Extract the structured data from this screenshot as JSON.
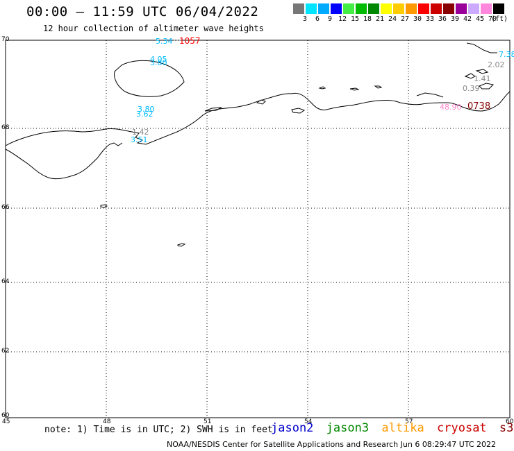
{
  "header": {
    "title": "00:00 – 11:59 UTC 06/04/2022",
    "subtitle": "12 hour collection of altimeter wave heights"
  },
  "scale": {
    "unit": "(ft)",
    "bins": [
      {
        "color": "#777777",
        "label": "3"
      },
      {
        "color": "#00e5ff",
        "label": "6"
      },
      {
        "color": "#00aaff",
        "label": "9"
      },
      {
        "color": "#0000ff",
        "label": "12"
      },
      {
        "color": "#44ee44",
        "label": "15"
      },
      {
        "color": "#00bb00",
        "label": "18"
      },
      {
        "color": "#008800",
        "label": "21"
      },
      {
        "color": "#ffff00",
        "label": "24"
      },
      {
        "color": "#ffcc00",
        "label": "27"
      },
      {
        "color": "#ff9900",
        "label": "30"
      },
      {
        "color": "#ff0000",
        "label": "33"
      },
      {
        "color": "#cc0000",
        "label": "36"
      },
      {
        "color": "#880000",
        "label": "39"
      },
      {
        "color": "#990099",
        "label": "42"
      },
      {
        "color": "#ccaaff",
        "label": "45"
      },
      {
        "color": "#ff88dd",
        "label": "70"
      },
      {
        "color": "#000000",
        "label": ""
      }
    ]
  },
  "axes": {
    "lat_labels": [
      "70",
      "68",
      "66",
      "64",
      "62",
      "60"
    ],
    "lon_labels": [
      "45",
      "48",
      "51",
      "54",
      "57",
      "60"
    ]
  },
  "observations": [
    {
      "text": "5.34",
      "color": "#00bbff"
    },
    {
      "text": "1057",
      "color": "#ff0000"
    },
    {
      "text": "4.05",
      "color": "#00bbff"
    },
    {
      "text": "3.80",
      "color": "#00bbff"
    },
    {
      "text": "3.80",
      "color": "#00bbff"
    },
    {
      "text": "3.62",
      "color": "#00bbff"
    },
    {
      "text": "1.42",
      "color": "#888888"
    },
    {
      "text": "3.51",
      "color": "#00bbff"
    },
    {
      "text": "7.38",
      "color": "#00bbff"
    },
    {
      "text": "2.02",
      "color": "#888888"
    },
    {
      "text": "1.41",
      "color": "#888888"
    },
    {
      "text": "0.39",
      "color": "#888888"
    },
    {
      "text": "48.90",
      "color": "#ff88cc"
    },
    {
      "text": "0738",
      "color": "#880000"
    }
  ],
  "note": "note: 1) Time is in UTC; 2) SWH is in feet",
  "legend": [
    {
      "name": "jason2",
      "color": "#0000cc"
    },
    {
      "name": "jason3",
      "color": "#008800"
    },
    {
      "name": "altika",
      "color": "#ff9900"
    },
    {
      "name": "cryosat",
      "color": "#cc0000"
    },
    {
      "name": "s3a",
      "color": "#880000"
    }
  ],
  "footer": "NOAA/NESDIS Center for Satellite Applications and Research   Jun  6 08:29:47 UTC 2022"
}
